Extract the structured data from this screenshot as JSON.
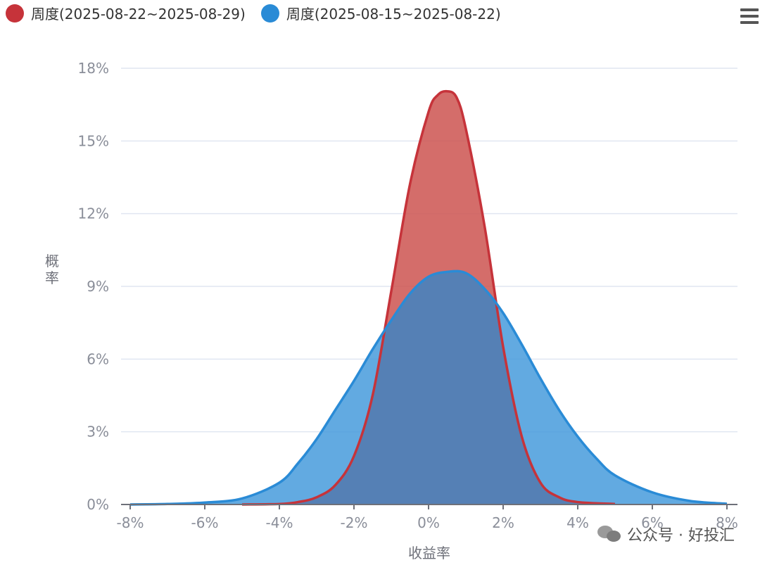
{
  "legend": {
    "series1_label": "周度(2025-08-22~2025-08-29)",
    "series2_label": "周度(2025-08-15~2025-08-22)"
  },
  "menu_icon": "hamburger-menu-icon",
  "watermark_text": "公众号 · 好投汇",
  "colors": {
    "series1": "#C6333A",
    "series1_fill": "#CC5450",
    "series2": "#2A8BD6",
    "series2_fill": "#3F97DB",
    "overlap": "#5580B5",
    "grid": "#E0E6F1",
    "axis_text": "#8A8E99",
    "axis_label": "#6E7079"
  },
  "chart_data": {
    "type": "area",
    "xlabel": "收益率",
    "ylabel": "概率",
    "xlim": [
      -8,
      8
    ],
    "ylim": [
      0,
      18
    ],
    "x_ticks": [
      "-8%",
      "-6%",
      "-4%",
      "-2%",
      "0%",
      "2%",
      "4%",
      "6%",
      "8%"
    ],
    "y_ticks": [
      "0%",
      "3%",
      "6%",
      "9%",
      "12%",
      "15%",
      "18%"
    ],
    "grid": true,
    "legend_position": "top-left",
    "series": [
      {
        "name": "周度(2025-08-22~2025-08-29)",
        "x": [
          -5,
          -4,
          -3.5,
          -3,
          -2.5,
          -2,
          -1.5,
          -1,
          -0.5,
          0,
          0.25,
          0.5,
          0.75,
          1,
          1.5,
          2,
          2.5,
          3,
          3.5,
          4,
          5
        ],
        "y": [
          0,
          0.02,
          0.1,
          0.3,
          0.8,
          2.0,
          4.5,
          8.8,
          13.2,
          16.2,
          16.9,
          17.05,
          16.8,
          15.5,
          11.5,
          6.5,
          2.8,
          0.9,
          0.3,
          0.1,
          0.02
        ]
      },
      {
        "name": "周度(2025-08-15~2025-08-22)",
        "x": [
          -8,
          -7,
          -6,
          -5,
          -4,
          -3.5,
          -3,
          -2.5,
          -2,
          -1.5,
          -1,
          -0.5,
          0,
          0.5,
          1,
          1.5,
          2,
          2.5,
          3,
          3.5,
          4,
          4.5,
          5,
          6,
          7,
          8
        ],
        "y": [
          0,
          0.02,
          0.08,
          0.25,
          0.9,
          1.7,
          2.7,
          3.9,
          5.1,
          6.4,
          7.6,
          8.7,
          9.4,
          9.6,
          9.55,
          8.9,
          7.9,
          6.6,
          5.2,
          3.9,
          2.8,
          1.9,
          1.2,
          0.5,
          0.15,
          0.03
        ]
      }
    ]
  }
}
